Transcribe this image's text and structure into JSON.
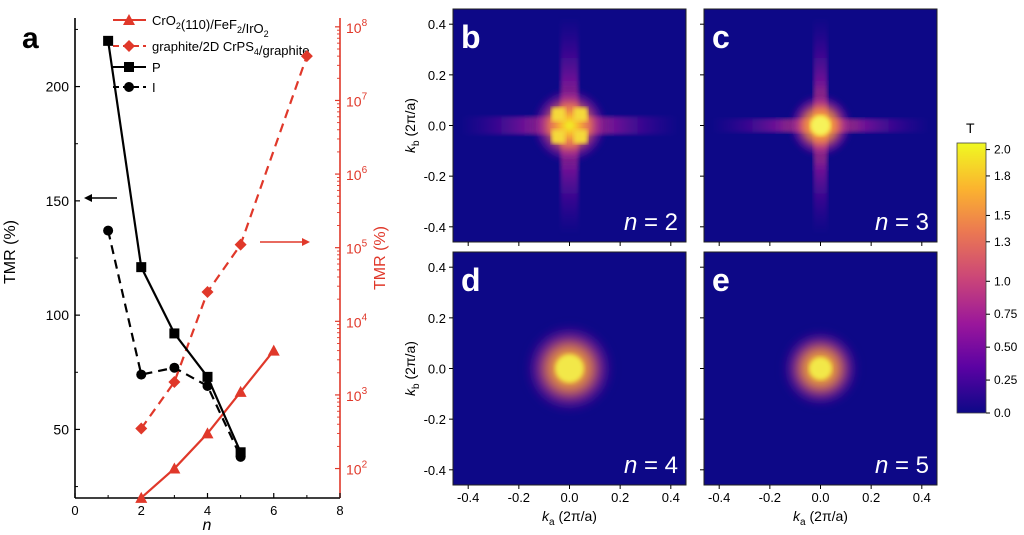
{
  "chart_data": [
    {
      "panel": "a",
      "type": "line",
      "xlabel": "n",
      "ylabel_left": "TMR (%)",
      "ylabel_right": "TMR (%)",
      "x_ticks": [
        "0",
        "2",
        "4",
        "6",
        "8"
      ],
      "y_left_ticks": [
        "50",
        "100",
        "150",
        "200"
      ],
      "y_right_ticks": [
        {
          "base": "10",
          "exp": "2"
        },
        {
          "base": "10",
          "exp": "3"
        },
        {
          "base": "10",
          "exp": "4"
        },
        {
          "base": "10",
          "exp": "5"
        },
        {
          "base": "10",
          "exp": "6"
        },
        {
          "base": "10",
          "exp": "7"
        },
        {
          "base": "10",
          "exp": "8"
        }
      ],
      "xlim": [
        0,
        8
      ],
      "ylim_left": [
        20,
        230
      ],
      "ylim_right_log10": [
        1.6,
        8.12
      ],
      "right_axis_scale": "log",
      "legend_position": "top",
      "series": [
        {
          "name": "CrO2(110)/FeF2/IrO2",
          "legend_parts": [
            [
              "CrO",
              "n"
            ],
            [
              "2",
              "sub"
            ],
            [
              "(110)/FeF",
              "n"
            ],
            [
              "2",
              "sub"
            ],
            [
              "/IrO",
              "n"
            ],
            [
              "2",
              "sub"
            ]
          ],
          "axis": "right",
          "color": "#e0382a",
          "marker": "triangle",
          "line": "solid",
          "x": [
            2,
            3,
            4,
            5,
            6
          ],
          "y": [
            40,
            100,
            300,
            1100,
            4000
          ]
        },
        {
          "name": "graphite/2D CrPS4/graphite",
          "legend_parts": [
            [
              "graphite/2D CrPS",
              "n"
            ],
            [
              "4",
              "sub"
            ],
            [
              "/graphite",
              "n"
            ]
          ],
          "axis": "right",
          "color": "#e0382a",
          "marker": "diamond",
          "line": "dashed",
          "x": [
            2,
            3,
            4,
            5,
            7
          ],
          "y": [
            350,
            1500,
            25000,
            110000,
            40000000
          ]
        },
        {
          "name": "P",
          "legend_parts": [
            [
              "P",
              "n"
            ]
          ],
          "axis": "left",
          "color": "#000000",
          "marker": "square",
          "line": "solid",
          "x": [
            1,
            2,
            3,
            4,
            5
          ],
          "y": [
            220,
            121,
            92,
            73,
            40
          ]
        },
        {
          "name": "I",
          "legend_parts": [
            [
              "I",
              "n"
            ]
          ],
          "axis": "left",
          "color": "#000000",
          "marker": "circle",
          "line": "dashed",
          "x": [
            1,
            2,
            3,
            4,
            5
          ],
          "y": [
            137,
            74,
            77,
            69,
            38
          ]
        }
      ],
      "annotations": [
        "left arrow → left axis",
        "right arrow → right axis"
      ]
    },
    {
      "panel": "heatmaps",
      "type": "heatmap",
      "xlabel": "k_a (2π/a)",
      "ylabel": "k_b (2π/a)",
      "x_ticks": [
        "-0.4",
        "-0.2",
        "0.0",
        "0.2",
        "0.4"
      ],
      "y_ticks": [
        "-0.4",
        "-0.2",
        "0.0",
        "0.2",
        "0.4"
      ],
      "xlim": [
        -0.46,
        0.46
      ],
      "ylim": [
        -0.46,
        0.46
      ],
      "panels": [
        {
          "letter": "b",
          "n_label": "n = 2"
        },
        {
          "letter": "c",
          "n_label": "n = 3"
        },
        {
          "letter": "d",
          "n_label": "n = 4"
        },
        {
          "letter": "e",
          "n_label": "n = 5"
        }
      ],
      "colorbar": {
        "title": "T",
        "ticks": [
          "2.0",
          "1.8",
          "1.5",
          "1.3",
          "1.0",
          "0.75",
          "0.50",
          "0.25",
          "0.0"
        ],
        "range": [
          0,
          2.05
        ],
        "colors": [
          "#0d0887",
          "#5b02a3",
          "#9a179b",
          "#cb4678",
          "#eb7852",
          "#fbb32f",
          "#f0f921"
        ]
      }
    }
  ],
  "labels": {
    "panel_a": "a",
    "x_axis_letter": "n",
    "ka_main": "k",
    "ka_sub": "a",
    "kb_main": "k",
    "kb_sub": "b",
    "units": "(2π/a)"
  }
}
